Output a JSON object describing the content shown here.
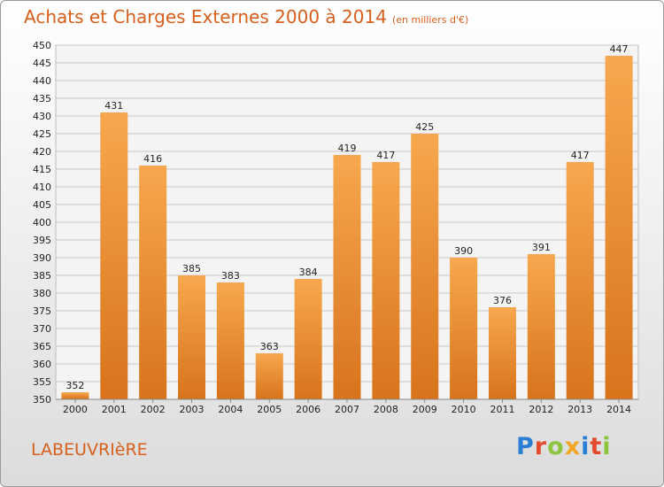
{
  "header": {
    "title": "Achats et Charges Externes 2000 à 2014",
    "subtitle": "(en milliers d'€)"
  },
  "footer": {
    "commune": "LABEUVRIèRE",
    "logo_letters": [
      {
        "ch": "P",
        "color": "#2a7fd4"
      },
      {
        "ch": "r",
        "color": "#e64a2e"
      },
      {
        "ch": "o",
        "color": "#8cc63f"
      },
      {
        "ch": "x",
        "color": "#f2a623"
      },
      {
        "ch": "i",
        "color": "#2a7fd4"
      },
      {
        "ch": "t",
        "color": "#e64a2e"
      },
      {
        "ch": "i",
        "color": "#8cc63f"
      }
    ]
  },
  "colors": {
    "bar_light": "#f7a84e",
    "bar_dark": "#d8731c",
    "grid": "#c8c8c8",
    "accent": "#d85f1c"
  },
  "chart_data": {
    "type": "bar",
    "categories": [
      "2000",
      "2001",
      "2002",
      "2003",
      "2004",
      "2005",
      "2006",
      "2007",
      "2008",
      "2009",
      "2010",
      "2011",
      "2012",
      "2013",
      "2014"
    ],
    "values": [
      352,
      431,
      416,
      385,
      383,
      363,
      384,
      419,
      417,
      425,
      390,
      376,
      391,
      417,
      447
    ],
    "title": "Achats et Charges Externes 2000 à 2014",
    "subtitle": "(en milliers d'€)",
    "ylim": [
      350,
      450
    ],
    "ytick_step": 5,
    "grid": true,
    "legend": "none"
  }
}
